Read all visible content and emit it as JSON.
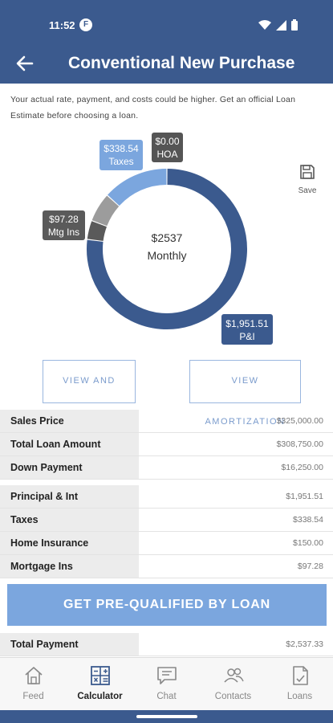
{
  "status_bar": {
    "time": "11:52",
    "app_badge": "F"
  },
  "header": {
    "title": "Conventional New Purchase"
  },
  "disclaimer": "Your actual rate, payment, and costs could be higher. Get an official Loan Estimate before choosing a loan.",
  "chart_data": {
    "type": "pie",
    "center_value": "$2537",
    "center_label": "Monthly",
    "slices": [
      {
        "label": "P&I",
        "value_text": "$1,951.51",
        "value": 1951.51,
        "color": "#3b5a8e"
      },
      {
        "label": "Mtg Ins",
        "value_text": "$97.28",
        "value": 97.28,
        "color": "#5a5a5a"
      },
      {
        "label": "Home Insurance",
        "value": 150.0,
        "color": "#9c9c9c"
      },
      {
        "label": "Taxes",
        "value_text": "$338.54",
        "value": 338.54,
        "color": "#7ba6de"
      },
      {
        "label": "HOA",
        "value_text": "$0.00",
        "value": 0.0,
        "color": "#555555"
      }
    ]
  },
  "save": {
    "label": "Save"
  },
  "buttons": {
    "share": "VIEW AND SHARE",
    "amortization": "VIEW AMORTIZATION",
    "prequal": "GET PRE-QUALIFIED BY LOAN"
  },
  "loan_table": [
    {
      "label": "Sales Price",
      "value": "$325,000.00"
    },
    {
      "label": "Total Loan Amount",
      "value": "$308,750.00"
    },
    {
      "label": "Down Payment",
      "value": "$16,250.00"
    }
  ],
  "payment_table": [
    {
      "label": "Principal & Int",
      "value": "$1,951.51"
    },
    {
      "label": "Taxes",
      "value": "$338.54"
    },
    {
      "label": "Home Insurance",
      "value": "$150.00"
    },
    {
      "label": "Mortgage Ins",
      "value": "$97.28"
    }
  ],
  "total_row": {
    "label": "Total Payment",
    "value": "$2,537.33"
  },
  "nav": [
    {
      "label": "Feed",
      "icon": "home-icon"
    },
    {
      "label": "Calculator",
      "icon": "calculator-icon",
      "active": true
    },
    {
      "label": "Chat",
      "icon": "chat-icon"
    },
    {
      "label": "Contacts",
      "icon": "contacts-icon"
    },
    {
      "label": "Loans",
      "icon": "document-icon"
    }
  ],
  "colors": {
    "primary": "#3b5a8e",
    "accent": "#7ba6de",
    "button_outline": "#9ab6df"
  }
}
